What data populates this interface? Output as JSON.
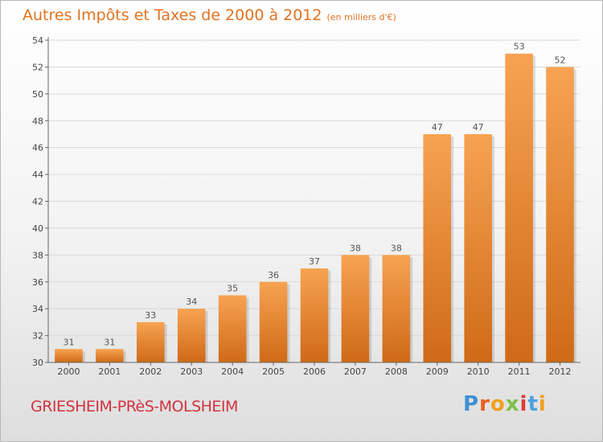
{
  "chart_data": {
    "type": "bar",
    "title": "Autres Impôts et Taxes de 2000 à 2012",
    "subtitle": "(en milliers d'€)",
    "categories": [
      "2000",
      "2001",
      "2002",
      "2003",
      "2004",
      "2005",
      "2006",
      "2007",
      "2008",
      "2009",
      "2010",
      "2011",
      "2012"
    ],
    "values": [
      31,
      31,
      33,
      34,
      35,
      36,
      37,
      38,
      38,
      47,
      47,
      53,
      52
    ],
    "ylim": [
      30,
      54
    ],
    "yticks": [
      30,
      32,
      34,
      36,
      38,
      40,
      42,
      44,
      46,
      48,
      50,
      52,
      54
    ],
    "xlabel": "",
    "ylabel": "",
    "grid": true,
    "bar_color_top": "#f7a352",
    "bar_color_bottom": "#cf6a17"
  },
  "footer": {
    "commune": "GRIESHEIM-PRèS-MOLSHEIM",
    "logo": [
      "P",
      "r",
      "o",
      "x",
      "i",
      "t",
      "i"
    ],
    "logo_colors": [
      "#3f8fd3",
      "#e8601c",
      "#f0a01e",
      "#7cc04a",
      "#e03a3a",
      "#4ba1e0",
      "#f0a01e"
    ]
  }
}
